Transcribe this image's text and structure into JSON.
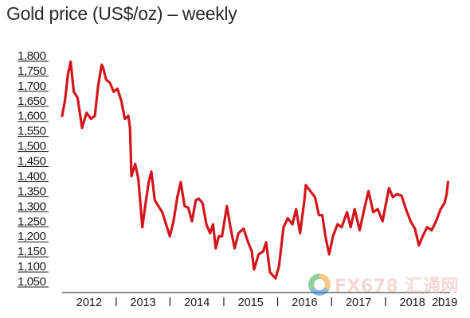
{
  "chart_data": {
    "type": "line",
    "title": "Gold price (US$/oz) – weekly",
    "xlabel": "",
    "ylabel": "",
    "ylim": [
      1050,
      1800
    ],
    "xlim": [
      "2012-01-01",
      "2019-03-15"
    ],
    "yticks": [
      "1,800",
      "1,750",
      "1,700",
      "1,650",
      "1,600",
      "1,550",
      "1,500",
      "1,450",
      "1,400",
      "1,350",
      "1,300",
      "1,250",
      "1,200",
      "1,150",
      "1,100",
      "1,050"
    ],
    "xticks": [
      "2012",
      "2013",
      "2014",
      "2015",
      "2016",
      "2017",
      "2018",
      "2019"
    ],
    "grid": false,
    "legend": "none",
    "series": [
      {
        "color": "#d2161c",
        "x": [
          "2012-01-01",
          "2012-01-20",
          "2012-02-10",
          "2012-02-28",
          "2012-03-20",
          "2012-04-15",
          "2012-05-15",
          "2012-06-15",
          "2012-07-15",
          "2012-08-10",
          "2012-09-01",
          "2012-09-25",
          "2012-10-05",
          "2012-10-25",
          "2012-11-20",
          "2012-12-15",
          "2013-01-10",
          "2013-02-05",
          "2013-03-01",
          "2013-03-25",
          "2013-04-05",
          "2013-04-15",
          "2013-05-10",
          "2013-06-01",
          "2013-06-28",
          "2013-07-20",
          "2013-08-10",
          "2013-08-28",
          "2013-09-20",
          "2013-10-15",
          "2013-11-10",
          "2013-12-31",
          "2014-01-25",
          "2014-02-20",
          "2014-03-15",
          "2014-04-10",
          "2014-05-05",
          "2014-05-30",
          "2014-06-25",
          "2014-07-15",
          "2014-08-10",
          "2014-09-05",
          "2014-09-30",
          "2014-10-20",
          "2014-11-07",
          "2014-11-28",
          "2014-12-20",
          "2015-01-22",
          "2015-02-15",
          "2015-03-15",
          "2015-04-10",
          "2015-05-15",
          "2015-06-15",
          "2015-07-10",
          "2015-07-25",
          "2015-08-25",
          "2015-09-25",
          "2015-10-15",
          "2015-11-10",
          "2015-12-18",
          "2016-01-10",
          "2016-02-10",
          "2016-03-10",
          "2016-04-10",
          "2016-05-05",
          "2016-06-01",
          "2016-06-30",
          "2016-07-10",
          "2016-08-10",
          "2016-09-10",
          "2016-10-07",
          "2016-10-30",
          "2016-11-20",
          "2016-12-15",
          "2017-01-10",
          "2017-02-10",
          "2017-03-10",
          "2017-04-15",
          "2017-05-10",
          "2017-06-06",
          "2017-07-10",
          "2017-08-10",
          "2017-09-08",
          "2017-10-10",
          "2017-11-10",
          "2017-12-12",
          "2018-01-25",
          "2018-02-20",
          "2018-03-20",
          "2018-04-20",
          "2018-05-20",
          "2018-06-20",
          "2018-07-20",
          "2018-08-16",
          "2018-09-10",
          "2018-10-10",
          "2018-11-10",
          "2018-12-10",
          "2019-01-10",
          "2019-02-05",
          "2019-02-20",
          "2019-03-01"
        ],
        "values": [
          1600,
          1650,
          1740,
          1780,
          1680,
          1660,
          1560,
          1610,
          1590,
          1600,
          1700,
          1770,
          1760,
          1720,
          1710,
          1680,
          1690,
          1650,
          1590,
          1600,
          1560,
          1400,
          1440,
          1390,
          1230,
          1310,
          1380,
          1415,
          1320,
          1300,
          1280,
          1200,
          1250,
          1330,
          1380,
          1300,
          1295,
          1250,
          1320,
          1325,
          1310,
          1240,
          1210,
          1240,
          1160,
          1200,
          1200,
          1300,
          1230,
          1160,
          1210,
          1225,
          1180,
          1150,
          1090,
          1140,
          1150,
          1180,
          1080,
          1060,
          1100,
          1230,
          1260,
          1240,
          1290,
          1210,
          1320,
          1370,
          1350,
          1330,
          1270,
          1270,
          1200,
          1140,
          1200,
          1240,
          1230,
          1280,
          1230,
          1290,
          1220,
          1290,
          1350,
          1280,
          1290,
          1250,
          1360,
          1330,
          1340,
          1335,
          1290,
          1250,
          1225,
          1170,
          1200,
          1230,
          1220,
          1250,
          1290,
          1310,
          1340,
          1380
        ]
      }
    ]
  },
  "watermark": {
    "text": "FX678 汇通网"
  }
}
